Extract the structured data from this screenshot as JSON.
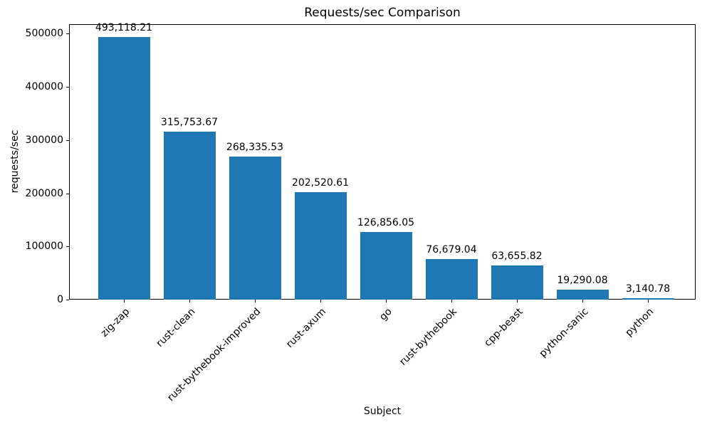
{
  "chart_data": {
    "type": "bar",
    "title": "Requests/sec Comparison",
    "xlabel": "Subject",
    "ylabel": "requests/sec",
    "categories": [
      "zig-zap",
      "rust-clean",
      "rust-bythebook-improved",
      "rust-axum",
      "go",
      "rust-bythebook",
      "cpp-beast",
      "python-sanic",
      "python"
    ],
    "values": [
      493118.21,
      315753.67,
      268335.53,
      202520.61,
      126856.05,
      76679.04,
      63655.82,
      19290.08,
      3140.78
    ],
    "value_labels": [
      "493,118.21",
      "315,753.67",
      "268,335.53",
      "202,520.61",
      "126,856.05",
      "76,679.04",
      "63,655.82",
      "19,290.08",
      "3,140.78"
    ],
    "yticks": [
      0,
      100000,
      200000,
      300000,
      400000,
      500000
    ],
    "ytick_labels": [
      "0",
      "100000",
      "200000",
      "300000",
      "400000",
      "500000"
    ],
    "ylim": [
      0,
      517774
    ],
    "grid": false,
    "bar_color": "#1f77b4",
    "axis_color": "#000000",
    "background_color": "#ffffff"
  }
}
